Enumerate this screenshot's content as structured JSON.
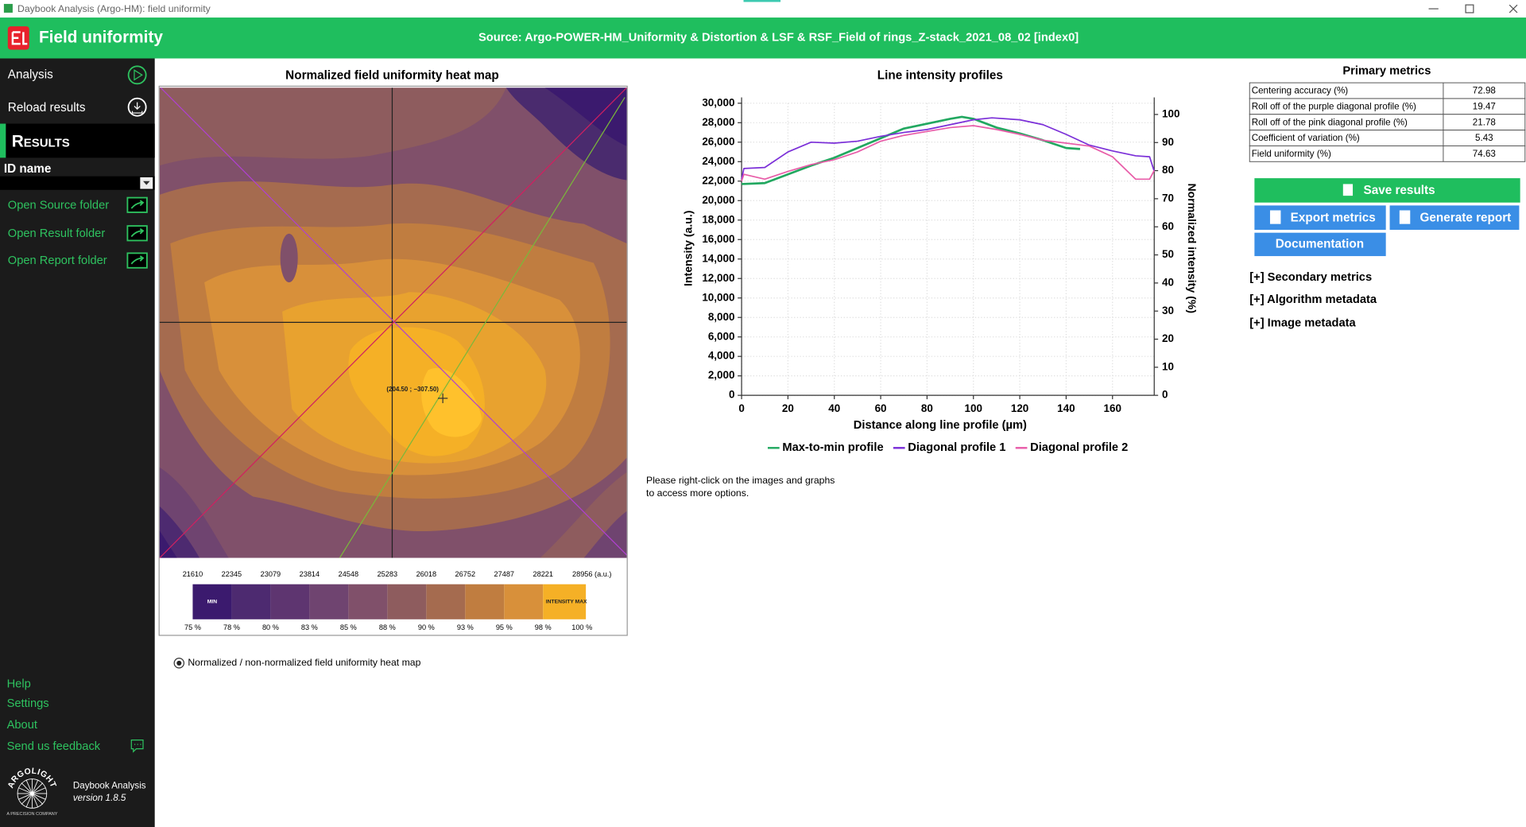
{
  "window": {
    "title": "Daybook Analysis (Argo-HM): field uniformity"
  },
  "header": {
    "title": "Field uniformity",
    "source": "Source: Argo-POWER-HM_Uniformity & Distortion & LSF & RSF_Field of rings_Z-stack_2021_08_02 [index0]"
  },
  "sidebar": {
    "analysis": "Analysis",
    "reload": "Reload results",
    "results": "Results",
    "id_name": "ID name",
    "links": [
      "Open Source folder",
      "Open Result folder",
      "Open Report folder"
    ],
    "footer_links": [
      "Help",
      "Settings",
      "About",
      "Send us feedback"
    ],
    "app_name": "Daybook Analysis",
    "version": "version 1.8.5",
    "logo": "ARGOLIGHT",
    "logo_tagline": "A PRECISION COMPANY"
  },
  "heatmap": {
    "title": "Normalized field uniformity heat map",
    "cursor_label": "(204.50 ; −307.50)",
    "scale_labels": [
      "21610",
      "22345",
      "23079",
      "23814",
      "24548",
      "25283",
      "26018",
      "26752",
      "27487",
      "28221",
      "28956 (a.u.)"
    ],
    "percent_labels": [
      "75 %",
      "78 %",
      "80 %",
      "83 %",
      "85 %",
      "88 %",
      "90 %",
      "93 %",
      "95 %",
      "98 %",
      "100 %"
    ],
    "min_label": "MIN",
    "max_label": "INTENSITY MAX",
    "toggle": "Normalized / non-normalized field uniformity heat map"
  },
  "chart_data": {
    "type": "line",
    "title": "Line intensity profiles",
    "x_label": "Distance along line profile (µm)",
    "y_label": "Intensity (a.u.)",
    "y2_label": "Normalized intensity (%)",
    "xlim": [
      0,
      178
    ],
    "xticks": [
      0,
      20,
      40,
      60,
      80,
      100,
      120,
      140,
      160
    ],
    "ylim": [
      0,
      30000
    ],
    "yticks": [
      0,
      {
        "value": 2000,
        "label": "2,000"
      },
      {
        "value": 4000,
        "label": "4,000"
      },
      {
        "value": 6000,
        "label": "6,000"
      },
      {
        "value": 8000,
        "label": "8,000"
      },
      {
        "value": 10000,
        "label": "10,000"
      },
      {
        "value": 12000,
        "label": "12,000"
      },
      {
        "value": 14000,
        "label": "14,000"
      },
      {
        "value": 16000,
        "label": "16,000"
      },
      {
        "value": 18000,
        "label": "18,000"
      },
      {
        "value": 20000,
        "label": "20,000"
      },
      {
        "value": 22000,
        "label": "22,000"
      },
      {
        "value": 24000,
        "label": "24,000"
      },
      {
        "value": 26000,
        "label": "26,000"
      },
      {
        "value": 28000,
        "label": "28,000"
      },
      {
        "value": 30000,
        "label": "30,000"
      }
    ],
    "y2lim": [
      0,
      104
    ],
    "y2ticks": [
      0,
      10,
      20,
      30,
      40,
      50,
      60,
      70,
      80,
      90,
      100
    ],
    "grid": true,
    "legend": "bottom",
    "series": [
      {
        "name": "Max-to-min profile",
        "color": "#22a860",
        "x": [
          0,
          10,
          20,
          30,
          40,
          50,
          60,
          70,
          80,
          90,
          95,
          100,
          110,
          120,
          130,
          140,
          146
        ],
        "values": [
          21700,
          21800,
          22700,
          23600,
          24400,
          25400,
          26400,
          27400,
          27900,
          28400,
          28600,
          28400,
          27500,
          26900,
          26200,
          25400,
          25300
        ]
      },
      {
        "name": "Diagonal profile 1",
        "color": "#7b2fd8",
        "x": [
          0,
          1,
          10,
          20,
          30,
          40,
          50,
          60,
          70,
          80,
          90,
          100,
          108,
          120,
          130,
          140,
          150,
          160,
          170,
          176,
          178
        ],
        "values": [
          22200,
          23300,
          23400,
          25000,
          26000,
          25900,
          26100,
          26600,
          27000,
          27300,
          27800,
          28300,
          28500,
          28300,
          27800,
          26800,
          25700,
          25100,
          24600,
          24500,
          23000
        ]
      },
      {
        "name": "Diagonal profile 2",
        "color": "#e85ca8",
        "x": [
          0,
          1,
          10,
          20,
          30,
          40,
          50,
          60,
          70,
          80,
          90,
          100,
          110,
          120,
          130,
          140,
          150,
          160,
          170,
          176,
          178
        ],
        "values": [
          22000,
          22700,
          22200,
          23000,
          23700,
          24200,
          25000,
          26100,
          26700,
          27100,
          27500,
          27700,
          27300,
          26800,
          26200,
          25900,
          25600,
          24500,
          22200,
          22200,
          23100
        ]
      }
    ]
  },
  "hint": [
    "Please right-click on the images and graphs",
    "to access more options."
  ],
  "metrics": {
    "title": "Primary metrics",
    "rows": [
      [
        "Centering accuracy (%)",
        72.98
      ],
      [
        "Roll off of the purple diagonal profile (%)",
        19.47
      ],
      [
        "Roll off of the pink diagonal profile (%)",
        21.78
      ],
      [
        "Coefficient of variation (%)",
        5.43
      ],
      [
        "Field uniformity (%)",
        74.63
      ]
    ]
  },
  "buttons": {
    "save": "Save results",
    "export": "Export metrics",
    "report": "Generate report",
    "documentation": "Documentation"
  },
  "sections": [
    "[+] Secondary metrics",
    "[+] Algorithm metadata",
    "[+] Image metadata"
  ]
}
